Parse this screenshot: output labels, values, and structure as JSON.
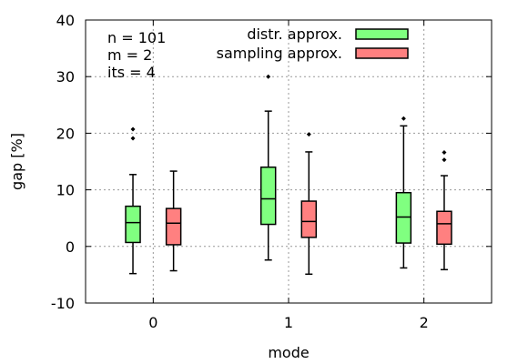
{
  "chart_data": {
    "type": "boxplot",
    "xlabel": "mode",
    "ylabel": "gap [%]",
    "ylim": [
      -10,
      40
    ],
    "yticks": [
      -10,
      0,
      10,
      20,
      30,
      40
    ],
    "xticks": [
      0,
      1,
      2
    ],
    "xlim": [
      -0.5,
      2.5
    ],
    "grid": true,
    "legend_position": "top-right",
    "annotations": [
      "n = 101",
      "m = 2",
      "its = 4"
    ],
    "series": [
      {
        "name": "distr. approx.",
        "color": "#80ff80",
        "offset": -0.15,
        "boxes": [
          {
            "x": 0,
            "whisker_low": -4.8,
            "q1": 0.7,
            "median": 4.2,
            "q3": 7.1,
            "whisker_high": 12.7,
            "outliers": [
              19.1,
              20.7
            ]
          },
          {
            "x": 1,
            "whisker_low": -2.4,
            "q1": 3.9,
            "median": 8.4,
            "q3": 14.0,
            "whisker_high": 23.9,
            "outliers": [
              30.0
            ]
          },
          {
            "x": 2,
            "whisker_low": -3.8,
            "q1": 0.6,
            "median": 5.2,
            "q3": 9.5,
            "whisker_high": 21.3,
            "outliers": [
              22.6
            ]
          }
        ]
      },
      {
        "name": "sampling approx.",
        "color": "#ff8080",
        "offset": 0.15,
        "boxes": [
          {
            "x": 0,
            "whisker_low": -4.3,
            "q1": 0.3,
            "median": 4.1,
            "q3": 6.7,
            "whisker_high": 13.3,
            "outliers": []
          },
          {
            "x": 1,
            "whisker_low": -4.9,
            "q1": 1.6,
            "median": 4.4,
            "q3": 8.0,
            "whisker_high": 16.7,
            "outliers": [
              19.8
            ]
          },
          {
            "x": 2,
            "whisker_low": -4.1,
            "q1": 0.4,
            "median": 4.0,
            "q3": 6.2,
            "whisker_high": 12.5,
            "outliers": [
              15.3,
              16.6
            ]
          }
        ]
      }
    ]
  }
}
